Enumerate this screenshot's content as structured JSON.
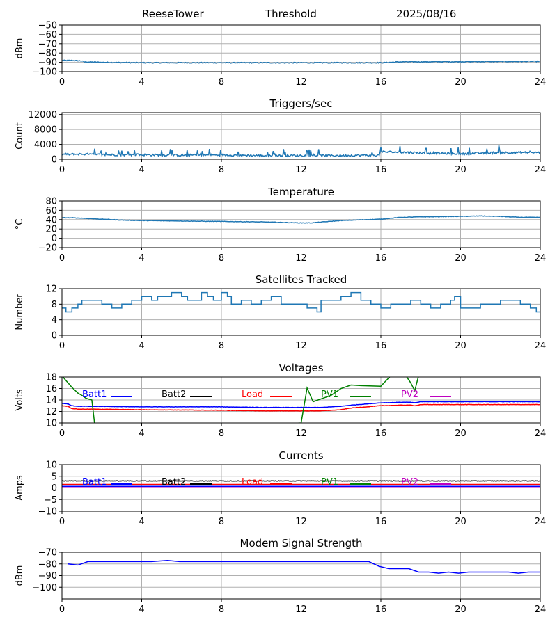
{
  "header": {
    "site": "ReeseTower",
    "mode": "Threshold",
    "date": "2025/08/16"
  },
  "colors": {
    "default": "#1f77b4",
    "blue": "#0000ff",
    "black": "#000000",
    "red": "#ff0000",
    "green": "#008000",
    "magenta": "#bf00bf",
    "grid": "#b0b0b0"
  },
  "x_axis": {
    "ticks": [
      0,
      4,
      8,
      12,
      16,
      20,
      24
    ],
    "xlim": [
      0,
      24
    ]
  },
  "chart_data": [
    {
      "id": "threshold",
      "type": "line",
      "title": "",
      "ylabel": "dBm",
      "ylim": [
        -100,
        -50
      ],
      "yticks": [
        -100,
        -90,
        -80,
        -70,
        -60,
        -50
      ],
      "series": [
        {
          "name": "Threshold",
          "color": "default",
          "noise": 0.5,
          "x": [
            0,
            0.5,
            1,
            1.1,
            2,
            4,
            8,
            12,
            14,
            16,
            17,
            20,
            24
          ],
          "y": [
            -88,
            -88,
            -88.5,
            -89.5,
            -90,
            -90.5,
            -90.5,
            -90.5,
            -90.5,
            -90.5,
            -89.5,
            -89.3,
            -89
          ]
        }
      ]
    },
    {
      "id": "triggers",
      "type": "line",
      "title": "Triggers/sec",
      "ylabel": "Count",
      "ylim": [
        0,
        12500
      ],
      "yticks": [
        0,
        4000,
        8000,
        12000
      ],
      "series": [
        {
          "name": "Triggers",
          "color": "default",
          "noise": 280,
          "spikes": 1,
          "x": [
            0,
            1,
            2,
            4,
            6,
            8,
            10,
            12,
            14,
            15.9,
            16,
            17,
            18,
            20,
            22,
            24
          ],
          "y": [
            1300,
            1400,
            1200,
            1200,
            1100,
            1150,
            1000,
            1000,
            1000,
            1100,
            2000,
            1900,
            1700,
            1500,
            1800,
            1800
          ]
        }
      ]
    },
    {
      "id": "temperature",
      "type": "line",
      "title": "Temperature",
      "ylabel": "°C",
      "ylim": [
        -20,
        80
      ],
      "yticks": [
        -20,
        0,
        20,
        40,
        60,
        80
      ],
      "series": [
        {
          "name": "Temperature",
          "color": "default",
          "noise": 0.5,
          "x": [
            0,
            0.5,
            2,
            3,
            4,
            6,
            8,
            10,
            11,
            12,
            12.5,
            14,
            16,
            17,
            18,
            20,
            21,
            22,
            23,
            24
          ],
          "y": [
            44,
            44,
            41,
            39,
            38,
            37,
            36,
            35,
            34,
            33,
            33,
            38,
            41,
            45,
            46,
            47,
            48,
            47,
            45,
            45
          ]
        }
      ]
    },
    {
      "id": "satellites",
      "type": "line",
      "title": "Satellites Tracked",
      "ylabel": "Number",
      "ylim": [
        0,
        12
      ],
      "yticks": [
        0,
        4,
        8,
        12
      ],
      "series": [
        {
          "name": "Satellites",
          "color": "default",
          "x": [
            0,
            0.1,
            0.2,
            0.4,
            0.5,
            0.6,
            0.8,
            1,
            1.5,
            2,
            2.2,
            2.5,
            2.8,
            3,
            3.5,
            4,
            4.5,
            4.8,
            5,
            5.5,
            6,
            6.3,
            7,
            7.3,
            7.6,
            8,
            8.3,
            8.5,
            9,
            9.5,
            10,
            10.5,
            11,
            11.5,
            12,
            12.3,
            12.8,
            13,
            13.5,
            14,
            14.5,
            15,
            15.5,
            16,
            16.5,
            17,
            17.5,
            18,
            18.5,
            19,
            19.5,
            19.7,
            20,
            21,
            22,
            23,
            23.5,
            23.8,
            24
          ],
          "y": [
            7,
            7,
            6,
            6,
            7,
            7,
            8,
            9,
            9,
            8,
            8,
            7,
            7,
            8,
            9,
            10,
            9,
            10,
            10,
            11,
            10,
            9,
            11,
            10,
            9,
            11,
            10,
            8,
            9,
            8,
            9,
            10,
            8,
            8,
            8,
            7,
            6,
            9,
            9,
            10,
            11,
            9,
            8,
            7,
            8,
            8,
            9,
            8,
            7,
            8,
            9,
            10,
            7,
            8,
            9,
            8,
            7,
            6,
            7
          ]
        }
      ]
    },
    {
      "id": "voltages",
      "type": "line",
      "title": "Voltages",
      "ylabel": "Volts",
      "ylim": [
        10,
        18
      ],
      "yticks": [
        10,
        12,
        14,
        16,
        18
      ],
      "legend": [
        "Batt1",
        "Batt2",
        "Load",
        "PV1",
        "PV2"
      ],
      "series": [
        {
          "name": "Batt1",
          "color": "blue",
          "noise": 0.03,
          "x": [
            0,
            0.3,
            0.5,
            0.8,
            1.5,
            4,
            8,
            10,
            12,
            13,
            14,
            14.5,
            16,
            17,
            17.5,
            17.7,
            18,
            20,
            22,
            24
          ],
          "y": [
            13.4,
            13.3,
            13.0,
            12.9,
            12.9,
            12.8,
            12.8,
            12.7,
            12.7,
            12.7,
            12.9,
            13.1,
            13.5,
            13.6,
            13.6,
            13.5,
            13.7,
            13.7,
            13.7,
            13.7
          ]
        },
        {
          "name": "Load",
          "color": "red",
          "noise": 0.03,
          "x": [
            0,
            0.3,
            0.5,
            0.8,
            1.5,
            4,
            8,
            10,
            12,
            13,
            14,
            14.5,
            16,
            17,
            17.5,
            17.7,
            18,
            20,
            22,
            24
          ],
          "y": [
            13.0,
            12.9,
            12.5,
            12.4,
            12.4,
            12.3,
            12.2,
            12.1,
            12.1,
            12.1,
            12.3,
            12.6,
            13.0,
            13.1,
            13.1,
            13.0,
            13.2,
            13.2,
            13.2,
            13.2
          ]
        },
        {
          "name": "PV1",
          "color": "green",
          "x": [
            0,
            0.5,
            0.8,
            1,
            1.2,
            1.5,
            1.7,
            12,
            12.3,
            12.6,
            13,
            13.5,
            14,
            14.5,
            15,
            16,
            16.3,
            16.5,
            17,
            17.2,
            17.5,
            17.7,
            17.9
          ],
          "y": [
            18.2,
            16.2,
            15.2,
            14.8,
            14.3,
            14.0,
            8,
            10,
            16.1,
            13.7,
            14.2,
            14.8,
            16.0,
            16.6,
            16.5,
            16.4,
            17.5,
            18.2,
            18.4,
            18.5,
            17.0,
            15.6,
            18.3
          ]
        }
      ]
    },
    {
      "id": "currents",
      "type": "line",
      "title": "Currents",
      "ylabel": "Amps",
      "ylim": [
        -10,
        10
      ],
      "yticks": [
        -10,
        -5,
        0,
        5,
        10
      ],
      "legend": [
        "Batt1",
        "Batt2",
        "Load",
        "PV1",
        "PV2"
      ],
      "series": [
        {
          "name": "Batt2",
          "color": "black",
          "noise": 0.1,
          "x": [
            0,
            24
          ],
          "y": [
            3,
            3
          ]
        },
        {
          "name": "Load",
          "color": "red",
          "x": [
            0,
            24
          ],
          "y": [
            1.5,
            1.5
          ]
        },
        {
          "name": "Batt1",
          "color": "blue",
          "x": [
            0,
            24
          ],
          "y": [
            0.7,
            0.7
          ]
        },
        {
          "name": "PV2",
          "color": "magenta",
          "x": [
            0,
            24
          ],
          "y": [
            0.1,
            0.1
          ]
        }
      ]
    },
    {
      "id": "modem",
      "type": "line",
      "title": "Modem Signal Strength",
      "ylabel": "dBm",
      "ylim": [
        -110,
        -70
      ],
      "yticks": [
        -100,
        -90,
        -80,
        -70
      ],
      "series": [
        {
          "name": "Modem",
          "color": "blue",
          "x": [
            0.3,
            0.8,
            1.3,
            4.5,
            5.3,
            5.9,
            15.4,
            15.9,
            16.4,
            17.4,
            17.9,
            18.4,
            18.9,
            19.4,
            19.9,
            20.4,
            21.4,
            22.4,
            22.9,
            23.4,
            24
          ],
          "y": [
            -80,
            -81,
            -78,
            -78,
            -77,
            -78,
            -78,
            -82,
            -84,
            -84,
            -87,
            -87,
            -88,
            -87,
            -88,
            -87,
            -87,
            -87,
            -88,
            -87,
            -87
          ]
        }
      ]
    }
  ]
}
